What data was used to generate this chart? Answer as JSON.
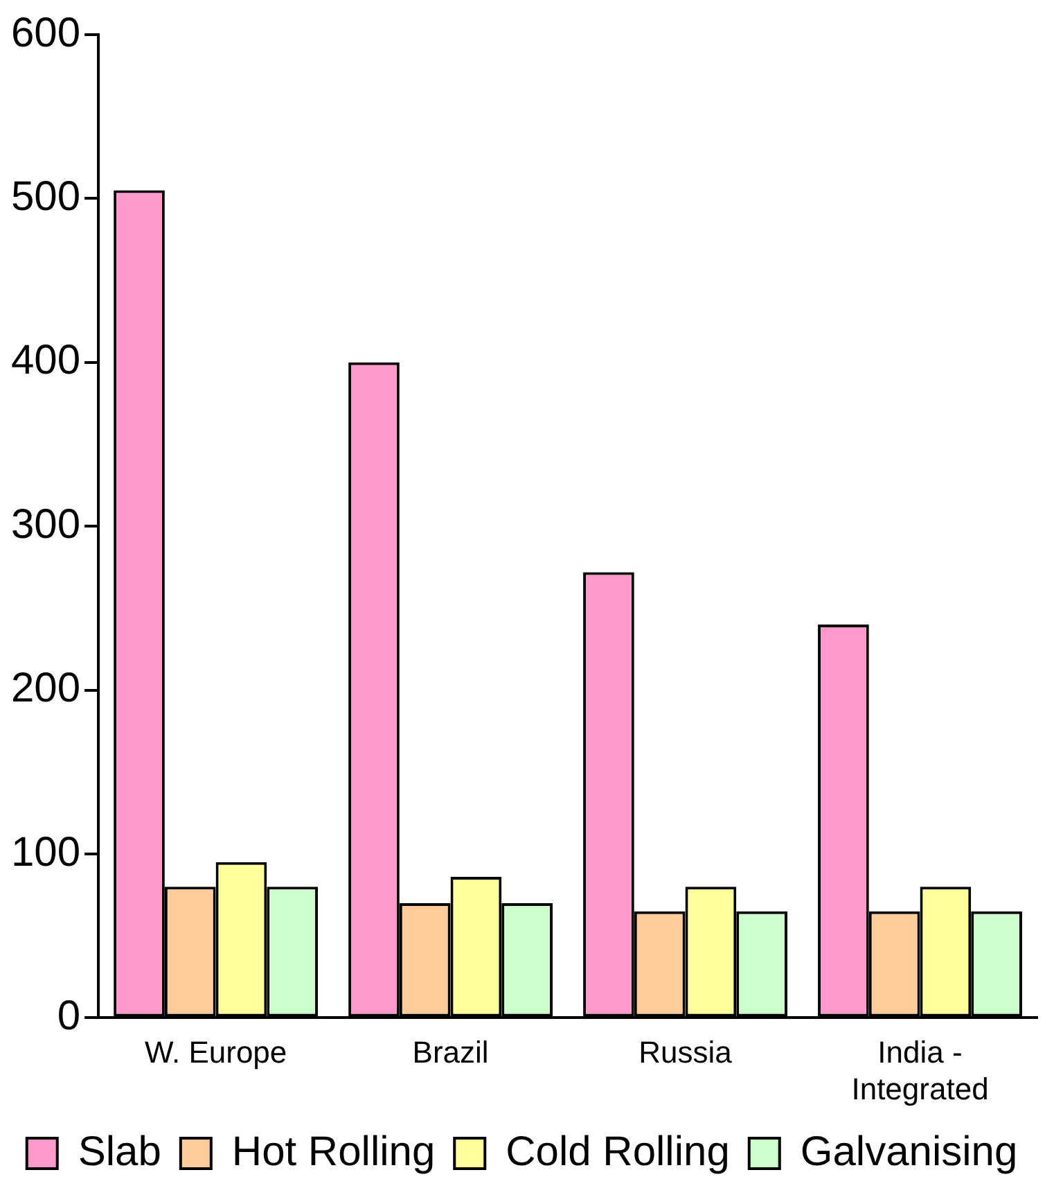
{
  "chart_data": {
    "type": "bar",
    "categories": [
      "W. Europe",
      "Brazil",
      "Russia",
      "India - Integrated"
    ],
    "series": [
      {
        "name": "Slab",
        "color": "#ff99cc",
        "values": [
          505,
          400,
          272,
          240
        ]
      },
      {
        "name": "Hot Rolling",
        "color": "#ffcc99",
        "values": [
          80,
          70,
          65,
          65
        ]
      },
      {
        "name": "Cold Rolling",
        "color": "#ffff99",
        "values": [
          95,
          86,
          80,
          80
        ]
      },
      {
        "name": "Galvanising",
        "color": "#ccffcc",
        "values": [
          80,
          70,
          65,
          65
        ]
      }
    ],
    "ylim": [
      0,
      600
    ],
    "yticks": [
      0,
      100,
      200,
      300,
      400,
      500,
      600
    ],
    "grid": false,
    "legend": "bottom"
  }
}
